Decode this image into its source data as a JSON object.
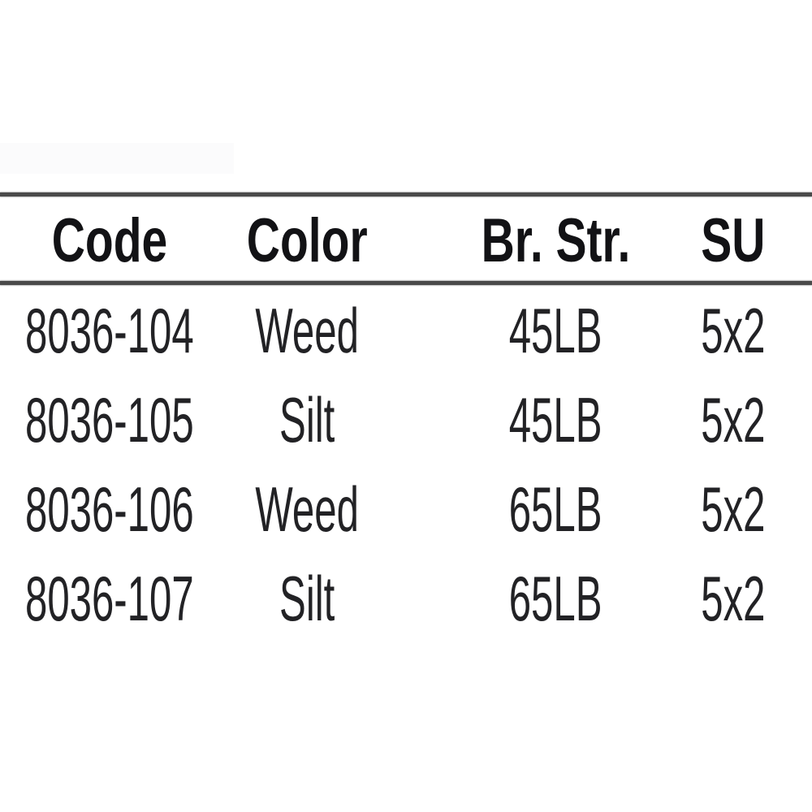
{
  "colors": {
    "background": "#ffffff",
    "rule": "#4a4a4a",
    "header_text": "#121215",
    "body_text": "#222225"
  },
  "table": {
    "headers": [
      "Code",
      "Color",
      "Br. Str.",
      "SU"
    ],
    "rows": [
      [
        "8036-104",
        "Weed",
        "45LB",
        "5x2"
      ],
      [
        "8036-105",
        "Silt",
        "45LB",
        "5x2"
      ],
      [
        "8036-106",
        "Weed",
        "65LB",
        "5x2"
      ],
      [
        "8036-107",
        "Silt",
        "65LB",
        "5x2"
      ]
    ]
  }
}
